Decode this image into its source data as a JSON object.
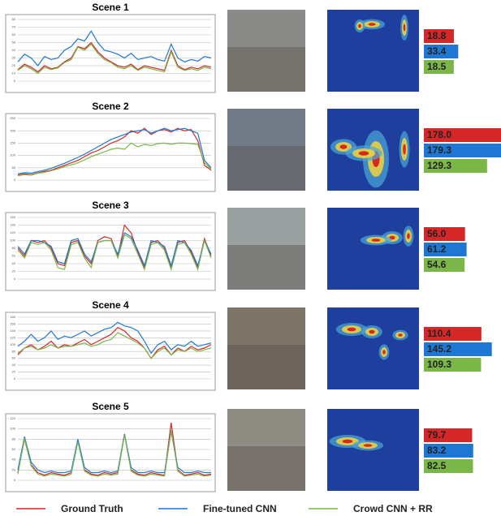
{
  "chart_data": [
    {
      "type": "line",
      "title": "Scene 1",
      "ylim": [
        0,
        80
      ],
      "yticks": [
        0,
        10,
        20,
        30,
        40,
        50,
        60,
        70,
        80
      ],
      "grid": true,
      "series": [
        {
          "name": "Ground Truth",
          "color": "#d62728",
          "values": [
            15,
            22,
            18,
            12,
            20,
            16,
            18,
            25,
            30,
            45,
            42,
            50,
            38,
            30,
            25,
            20,
            18,
            22,
            15,
            20,
            18,
            16,
            14,
            40,
            20,
            15,
            18,
            16,
            20,
            18
          ]
        },
        {
          "name": "Fine-tuned CNN",
          "color": "#1f77d4",
          "values": [
            25,
            35,
            30,
            20,
            32,
            28,
            30,
            40,
            45,
            55,
            52,
            65,
            50,
            40,
            38,
            35,
            30,
            36,
            28,
            30,
            32,
            28,
            26,
            48,
            30,
            25,
            28,
            26,
            32,
            30
          ]
        },
        {
          "name": "Crowd CNN + RR",
          "color": "#7ab648",
          "values": [
            14,
            20,
            16,
            10,
            18,
            15,
            17,
            24,
            28,
            44,
            40,
            48,
            36,
            28,
            24,
            18,
            16,
            20,
            14,
            18,
            16,
            14,
            12,
            38,
            18,
            14,
            16,
            14,
            18,
            16
          ]
        }
      ],
      "estimates": {
        "values": [
          18.8,
          33.4,
          18.5
        ],
        "value_labels": [
          "18.8",
          "33.4",
          "18.5"
        ]
      }
    },
    {
      "type": "line",
      "title": "Scene 2",
      "ylim": [
        0,
        250
      ],
      "yticks": [
        0,
        50,
        100,
        150,
        200,
        250
      ],
      "grid": true,
      "series": [
        {
          "color": "#d62728",
          "values": [
            20,
            25,
            22,
            30,
            35,
            40,
            50,
            60,
            70,
            80,
            95,
            110,
            120,
            135,
            150,
            160,
            175,
            200,
            190,
            210,
            185,
            200,
            205,
            195,
            210,
            200,
            205,
            160,
            60,
            40
          ]
        },
        {
          "color": "#1f77d4",
          "values": [
            25,
            30,
            28,
            35,
            40,
            48,
            58,
            68,
            80,
            92,
            105,
            120,
            135,
            150,
            165,
            175,
            185,
            195,
            200,
            205,
            190,
            200,
            210,
            200,
            205,
            210,
            200,
            190,
            80,
            50
          ]
        },
        {
          "color": "#7ab648",
          "values": [
            18,
            22,
            20,
            28,
            32,
            38,
            45,
            55,
            62,
            70,
            82,
            95,
            105,
            115,
            125,
            130,
            125,
            150,
            135,
            145,
            140,
            148,
            150,
            145,
            150,
            150,
            148,
            145,
            70,
            45
          ]
        }
      ],
      "estimates": {
        "values": [
          178.0,
          179.3,
          129.3
        ],
        "value_labels": [
          "178.0",
          "179.3",
          "129.3"
        ]
      }
    },
    {
      "type": "line",
      "title": "Scene 3",
      "ylim": [
        0,
        160
      ],
      "yticks": [
        0,
        20,
        40,
        60,
        80,
        100,
        120,
        140,
        160
      ],
      "grid": true,
      "series": [
        {
          "color": "#d62728",
          "values": [
            80,
            60,
            100,
            95,
            100,
            80,
            40,
            35,
            95,
            100,
            60,
            40,
            100,
            110,
            105,
            60,
            140,
            120,
            70,
            30,
            95,
            100,
            80,
            30,
            95,
            100,
            70,
            30,
            105,
            60
          ]
        },
        {
          "color": "#1f77d4",
          "values": [
            85,
            65,
            100,
            100,
            95,
            85,
            45,
            40,
            100,
            105,
            65,
            45,
            95,
            100,
            100,
            65,
            120,
            110,
            75,
            35,
            100,
            95,
            85,
            35,
            100,
            95,
            75,
            35,
            100,
            65
          ]
        },
        {
          "color": "#7ab648",
          "values": [
            75,
            55,
            95,
            90,
            95,
            75,
            30,
            25,
            90,
            95,
            55,
            30,
            95,
            100,
            100,
            55,
            115,
            105,
            65,
            25,
            90,
            95,
            75,
            25,
            90,
            95,
            65,
            25,
            100,
            55
          ]
        }
      ],
      "estimates": {
        "values": [
          56.0,
          61.2,
          54.6
        ],
        "value_labels": [
          "56.0",
          "61.2",
          "54.6"
        ]
      }
    },
    {
      "type": "line",
      "title": "Scene 4",
      "ylim": [
        0,
        180
      ],
      "yticks": [
        0,
        20,
        40,
        60,
        80,
        100,
        120,
        140,
        160,
        180
      ],
      "grid": true,
      "series": [
        {
          "color": "#d62728",
          "values": [
            70,
            90,
            100,
            85,
            95,
            110,
            90,
            100,
            95,
            105,
            115,
            100,
            110,
            120,
            130,
            150,
            140,
            120,
            110,
            90,
            60,
            85,
            95,
            70,
            90,
            80,
            95,
            85,
            90,
            100
          ]
        },
        {
          "color": "#1f77d4",
          "values": [
            95,
            110,
            130,
            110,
            120,
            140,
            115,
            125,
            120,
            130,
            140,
            125,
            135,
            145,
            150,
            165,
            155,
            150,
            140,
            110,
            75,
            100,
            110,
            85,
            100,
            95,
            110,
            95,
            100,
            105
          ]
        },
        {
          "color": "#7ab648",
          "values": [
            75,
            90,
            95,
            85,
            90,
            100,
            90,
            95,
            95,
            100,
            105,
            95,
            100,
            110,
            115,
            135,
            125,
            115,
            105,
            90,
            60,
            80,
            90,
            70,
            85,
            80,
            90,
            80,
            85,
            90
          ]
        }
      ],
      "estimates": {
        "values": [
          110.4,
          145.2,
          109.3
        ],
        "value_labels": [
          "110.4",
          "145.2",
          "109.3"
        ]
      }
    },
    {
      "type": "line",
      "title": "Scene 5",
      "ylim": [
        0,
        120
      ],
      "yticks": [
        0,
        20,
        40,
        60,
        80,
        100,
        120
      ],
      "grid": true,
      "series": [
        {
          "color": "#d62728",
          "values": [
            15,
            80,
            30,
            15,
            10,
            15,
            12,
            10,
            15,
            78,
            20,
            12,
            10,
            15,
            12,
            15,
            90,
            20,
            12,
            10,
            15,
            12,
            10,
            112,
            20,
            10,
            12,
            15,
            10,
            12
          ]
        },
        {
          "color": "#1f77d4",
          "values": [
            20,
            85,
            35,
            20,
            15,
            18,
            15,
            15,
            18,
            80,
            25,
            15,
            15,
            18,
            15,
            18,
            90,
            25,
            15,
            15,
            18,
            15,
            15,
            95,
            25,
            15,
            15,
            18,
            15,
            15
          ]
        },
        {
          "color": "#7ab648",
          "values": [
            12,
            82,
            28,
            12,
            8,
            12,
            10,
            8,
            12,
            75,
            18,
            10,
            8,
            12,
            10,
            12,
            88,
            18,
            10,
            8,
            12,
            10,
            8,
            98,
            18,
            8,
            10,
            12,
            8,
            10
          ]
        }
      ],
      "estimates": {
        "values": [
          79.7,
          83.2,
          82.5
        ],
        "value_labels": [
          "79.7",
          "83.2",
          "82.5"
        ]
      }
    }
  ]
}
